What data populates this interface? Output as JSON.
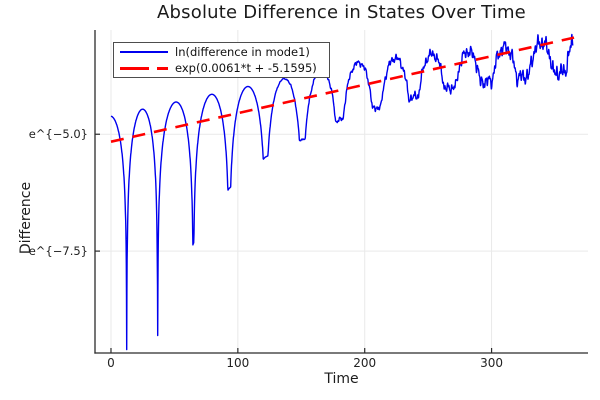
{
  "figure": {
    "background": "#ffffff"
  },
  "chart_data": {
    "type": "line",
    "title": "Absolute Difference in States Over Time",
    "xlabel": "Time",
    "ylabel": "Difference",
    "y_scale": "log (tick labels show e^{k}, values below are natural-log units)",
    "xlim": [
      -12.6,
      376
    ],
    "ylim_ln": [
      -9.68,
      -2.77
    ],
    "xticks": [
      0,
      100,
      200,
      300
    ],
    "xtick_labels": [
      "0",
      "100",
      "200",
      "300"
    ],
    "yticks_ln": [
      -5.0,
      -7.5
    ],
    "ytick_labels": [
      "e^{−5.0}",
      "e^{−7.5}"
    ],
    "grid": true,
    "legend_position": "top-left",
    "colors": {
      "grid": "#e9e9e9",
      "axis": "#2b2b2b",
      "text": "#1c1c1c",
      "legend_border": "#4d4d4d"
    },
    "series": [
      {
        "name": "ln(difference in mode1)",
        "color": "#0000ee",
        "style": "solid",
        "stroke_width": 1.4,
        "t_range": [
          0,
          364
        ],
        "model": {
          "trend_slope": 0.0061,
          "trend_intercept": -5.1595,
          "cusp_times": [
            12.4,
            36.8,
            64.9,
            93.2,
            121.8,
            150.8,
            180.0,
            209.5,
            238.5,
            267.3,
            295.8,
            324.5,
            353.5
          ],
          "virtual_first_cusp": -14,
          "virtual_last_cusp": 382,
          "peak_offset_anchors": [
            [
              0,
              0.55
            ],
            [
              200,
              0.5
            ],
            [
              255,
              0.32
            ],
            [
              285,
              0.2
            ],
            [
              320,
              0.1
            ],
            [
              365,
              -0.02
            ]
          ],
          "floor_anchors": [
            [
              0,
              -4.6
            ],
            [
              40,
              -4.35
            ],
            [
              65,
              -2.57
            ],
            [
              93,
              -1.57
            ],
            [
              122,
              -1.07
            ],
            [
              151,
              -0.87
            ],
            [
              180,
              -0.63
            ],
            [
              210,
              -0.55
            ],
            [
              240,
              -0.5
            ],
            [
              270,
              -0.48
            ],
            [
              300,
              -0.52
            ],
            [
              330,
              -0.6
            ],
            [
              365,
              -0.72
            ]
          ],
          "noise": {
            "amp_max": 0.16,
            "ramp_start": 115,
            "ramp_len": 250,
            "components": [
              [
                2.13,
                1.0,
                0.7
              ],
              [
                0.97,
                0.8,
                2.1
              ],
              [
                3.71,
                0.6,
                4.2
              ],
              [
                5.9,
                0.5,
                1.1
              ]
            ]
          }
        },
        "peaks_t_ln": [
          [
            1,
            -4.62
          ],
          [
            25.5,
            -4.55
          ],
          [
            51.8,
            -4.32
          ],
          [
            78.8,
            -4.1
          ],
          [
            107,
            -3.94
          ],
          [
            136,
            -3.8
          ],
          [
            164.7,
            -3.57
          ],
          [
            193.6,
            -3.48
          ],
          [
            221.2,
            -3.42
          ],
          [
            252.7,
            -3.3
          ],
          [
            280.3,
            -3.25
          ],
          [
            310,
            -3.15
          ],
          [
            339,
            -3.08
          ],
          [
            360,
            -3.05
          ]
        ],
        "troughs_t_ln": [
          [
            12.4,
            -9.51
          ],
          [
            36.8,
            -9.33
          ],
          [
            64.9,
            -7.33
          ],
          [
            93.2,
            -6.16
          ],
          [
            121.8,
            -5.48
          ],
          [
            151.5,
            -5.11
          ],
          [
            180.5,
            -4.69
          ],
          [
            210.2,
            -4.41
          ],
          [
            238.8,
            -4.23
          ],
          [
            267.1,
            -4.01
          ],
          [
            295.8,
            -3.9
          ],
          [
            327.6,
            -3.69
          ],
          [
            357.8,
            -3.77
          ]
        ]
      },
      {
        "name": "exp(0.0061*t + -5.1595)",
        "color": "#ff0000",
        "style": "dashed",
        "stroke_width": 2.6,
        "dash": [
          13,
          9
        ],
        "slope": 0.0061,
        "intercept": -5.1595,
        "t_range": [
          0,
          365
        ],
        "endpoints_t_ln": [
          [
            0,
            -5.1595
          ],
          [
            365,
            -2.933
          ]
        ]
      }
    ]
  }
}
